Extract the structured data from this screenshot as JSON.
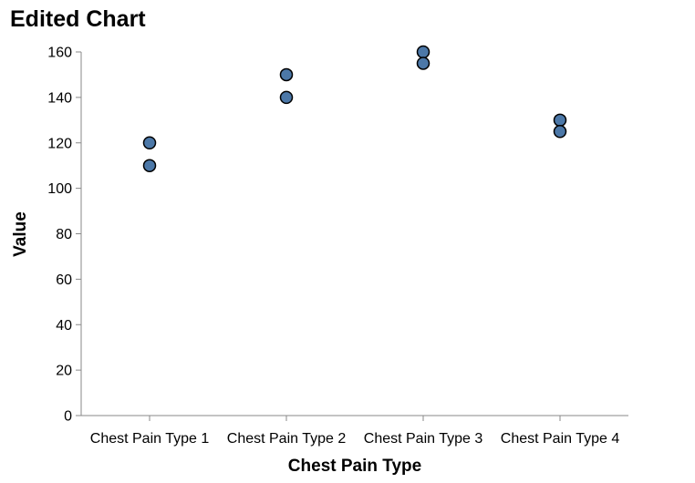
{
  "chart_data": {
    "type": "scatter",
    "title": "Edited Chart",
    "xlabel": "Chest Pain Type",
    "ylabel": "Value",
    "categories": [
      "Chest Pain Type 1",
      "Chest Pain Type 2",
      "Chest Pain Type 3",
      "Chest Pain Type 4"
    ],
    "points": [
      {
        "x": "Chest Pain Type 1",
        "y": 120
      },
      {
        "x": "Chest Pain Type 1",
        "y": 110
      },
      {
        "x": "Chest Pain Type 2",
        "y": 150
      },
      {
        "x": "Chest Pain Type 2",
        "y": 140
      },
      {
        "x": "Chest Pain Type 3",
        "y": 160
      },
      {
        "x": "Chest Pain Type 3",
        "y": 155
      },
      {
        "x": "Chest Pain Type 4",
        "y": 130
      },
      {
        "x": "Chest Pain Type 4",
        "y": 125
      }
    ],
    "ylim": [
      0,
      160
    ],
    "yticks": [
      0,
      20,
      40,
      60,
      80,
      100,
      120,
      140,
      160
    ],
    "grid": false,
    "point_color": "#4c78a8"
  }
}
